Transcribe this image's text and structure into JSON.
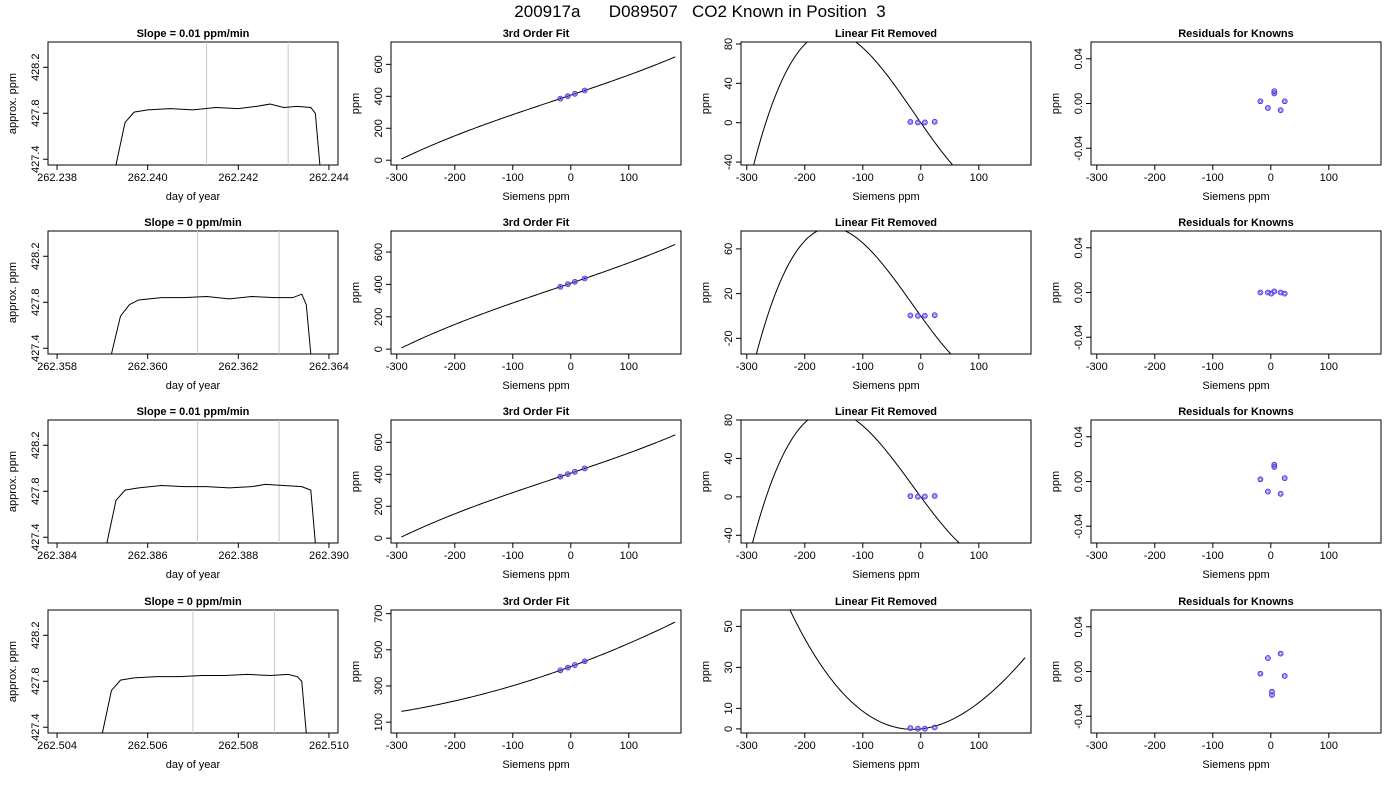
{
  "title": "200917a      D089507   CO2 Known in Position  3",
  "colors": {
    "ring_outer": "#7a1fd6",
    "ring_inner": "#1e90ff",
    "curve": "#000000",
    "vline": "#c8c8c8"
  },
  "chart_data": [
    {
      "row": 0,
      "col": 0,
      "type": "line",
      "title": "Slope =  0.01  ppm/min",
      "xlabel": "day of year",
      "ylabel": "approx. ppm",
      "xlim": [
        262.2378,
        262.2442
      ],
      "ylim": [
        427.35,
        428.42
      ],
      "xticks": [
        262.238,
        262.24,
        262.242,
        262.244
      ],
      "xtick_labels": [
        "262.238",
        "262.240",
        "262.242",
        "262.244"
      ],
      "yticks": [
        427.4,
        427.8,
        428.2
      ],
      "ytick_labels": [
        "427.4",
        "427.8",
        "428.2"
      ],
      "vlines": [
        262.2413,
        262.2431
      ],
      "series": [
        {
          "x": [
            262.2393,
            262.2395,
            262.2397,
            262.24,
            262.2405,
            262.241,
            262.2415,
            262.242,
            262.2424,
            262.2427,
            262.243,
            262.2433,
            262.2436,
            262.2437,
            262.2438
          ],
          "y": [
            427.35,
            427.72,
            427.81,
            427.83,
            427.84,
            427.83,
            427.85,
            427.84,
            427.86,
            427.88,
            427.85,
            427.86,
            427.85,
            427.8,
            427.35
          ]
        }
      ]
    },
    {
      "row": 0,
      "col": 1,
      "type": "line",
      "title": "3rd Order Fit",
      "xlabel": "Siemens ppm",
      "ylabel": "ppm",
      "xlim": [
        -310,
        190
      ],
      "ylim": [
        -30,
        740
      ],
      "xticks": [
        -300,
        -200,
        -100,
        0,
        100
      ],
      "xtick_labels": [
        "-300",
        "-200",
        "-100",
        "0",
        "100"
      ],
      "yticks": [
        0,
        200,
        400,
        600
      ],
      "ytick_labels": [
        "0",
        "200",
        "400",
        "600"
      ],
      "fit": "cubic",
      "coeffs": [
        407.3,
        1.214,
        0.0002,
        2.5e-06
      ],
      "fit_range": [
        -292,
        180
      ],
      "knowns": {
        "x": [
          -18,
          -5,
          7,
          24
        ],
        "y": [
          385.4,
          401.3,
          415.8,
          436.5
        ]
      }
    },
    {
      "row": 0,
      "col": 2,
      "type": "line",
      "title": "Linear Fit Removed",
      "xlabel": "Siemens ppm",
      "ylabel": "ppm",
      "xlim": [
        -310,
        190
      ],
      "ylim": [
        -43,
        82
      ],
      "xticks": [
        -300,
        -200,
        -100,
        0,
        100
      ],
      "xtick_labels": [
        "-300",
        "-200",
        "-100",
        "0",
        "100"
      ],
      "yticks": [
        -40,
        0,
        40,
        80
      ],
      "ytick_labels": [
        "-40",
        "0",
        "40",
        "80"
      ],
      "fit": "cubic",
      "coeffs": [
        0,
        -0.85,
        0.00048,
        1.37e-05
      ],
      "fit_range": [
        -292,
        180
      ],
      "knowns": {
        "x": [
          -18,
          -5,
          7,
          24
        ],
        "y": [
          0.8,
          0.2,
          0.3,
          0.9
        ]
      }
    },
    {
      "row": 0,
      "col": 3,
      "type": "scatter",
      "title": "Residuals for Knowns",
      "xlabel": "Siemens ppm",
      "ylabel": "ppm",
      "xlim": [
        -310,
        190
      ],
      "ylim": [
        -0.055,
        0.055
      ],
      "xticks": [
        -300,
        -200,
        -100,
        0,
        100
      ],
      "xtick_labels": [
        "-300",
        "-200",
        "-100",
        "0",
        "100"
      ],
      "yticks": [
        -0.04,
        0.0,
        0.04
      ],
      "ytick_labels": [
        "-0.04",
        "0.00",
        "0.04"
      ],
      "points": {
        "x": [
          -18,
          -5,
          6,
          17,
          24,
          6
        ],
        "y": [
          0.002,
          -0.004,
          0.009,
          -0.006,
          0.002,
          0.011
        ]
      }
    },
    {
      "row": 1,
      "col": 0,
      "type": "line",
      "title": "Slope =  0  ppm/min",
      "xlabel": "day of year",
      "ylabel": "approx. ppm",
      "xlim": [
        262.3578,
        262.3642
      ],
      "ylim": [
        427.35,
        428.42
      ],
      "xticks": [
        262.358,
        262.36,
        262.362,
        262.364
      ],
      "xtick_labels": [
        "262.358",
        "262.360",
        "262.362",
        "262.364"
      ],
      "vlines": [
        262.3611,
        262.3629
      ],
      "yticks": [
        427.4,
        427.8,
        428.2
      ],
      "ytick_labels": [
        "427.4",
        "427.8",
        "428.2"
      ],
      "series": [
        {
          "x": [
            262.3592,
            262.3594,
            262.3596,
            262.3598,
            262.3603,
            262.3608,
            262.3613,
            262.3618,
            262.3623,
            262.3628,
            262.3632,
            262.3634,
            262.3635,
            262.3636
          ],
          "y": [
            427.35,
            427.68,
            427.78,
            427.82,
            427.84,
            427.84,
            427.85,
            427.83,
            427.85,
            427.84,
            427.84,
            427.87,
            427.78,
            427.35
          ]
        }
      ]
    },
    {
      "row": 1,
      "col": 1,
      "type": "line",
      "title": "3rd Order Fit",
      "xlabel": "Siemens ppm",
      "ylabel": "ppm",
      "xlim": [
        -310,
        190
      ],
      "ylim": [
        -30,
        730
      ],
      "xticks": [
        -300,
        -200,
        -100,
        0,
        100
      ],
      "xtick_labels": [
        "-300",
        "-200",
        "-100",
        "0",
        "100"
      ],
      "yticks": [
        0,
        200,
        400,
        600
      ],
      "ytick_labels": [
        "0",
        "200",
        "400",
        "600"
      ],
      "fit": "cubic",
      "coeffs": [
        407.3,
        1.214,
        0.0002,
        2.5e-06
      ],
      "fit_range": [
        -292,
        180
      ],
      "knowns": {
        "x": [
          -18,
          -5,
          7,
          24
        ],
        "y": [
          385.4,
          401.3,
          415.8,
          436.5
        ]
      }
    },
    {
      "row": 1,
      "col": 2,
      "type": "line",
      "title": "Linear Fit Removed",
      "xlabel": "Siemens ppm",
      "ylabel": "ppm",
      "xlim": [
        -310,
        190
      ],
      "ylim": [
        -34,
        76
      ],
      "xticks": [
        -300,
        -200,
        -100,
        0,
        100
      ],
      "xtick_labels": [
        "-300",
        "-200",
        "-100",
        "0",
        "100"
      ],
      "yticks": [
        -20,
        20,
        60
      ],
      "ytick_labels": [
        "-20",
        "20",
        "60"
      ],
      "fit": "cubic",
      "coeffs": [
        0,
        -0.72,
        0.00058,
        1.25e-05
      ],
      "fit_range": [
        -292,
        180
      ],
      "knowns": {
        "x": [
          -18,
          -5,
          7,
          24
        ],
        "y": [
          0.5,
          0.1,
          0.2,
          0.7
        ]
      }
    },
    {
      "row": 1,
      "col": 3,
      "type": "scatter",
      "title": "Residuals for Knowns",
      "xlabel": "Siemens ppm",
      "ylabel": "ppm",
      "xlim": [
        -310,
        190
      ],
      "ylim": [
        -0.055,
        0.055
      ],
      "xticks": [
        -300,
        -200,
        -100,
        0,
        100
      ],
      "xtick_labels": [
        "-300",
        "-200",
        "-100",
        "0",
        "100"
      ],
      "yticks": [
        -0.04,
        0.0,
        0.04
      ],
      "ytick_labels": [
        "-0.04",
        "0.00",
        "0.04"
      ],
      "points": {
        "x": [
          -18,
          -5,
          1,
          6,
          17,
          24
        ],
        "y": [
          0.0,
          0.0,
          -0.001,
          0.001,
          0.0,
          -0.001
        ]
      }
    },
    {
      "row": 2,
      "col": 0,
      "type": "line",
      "title": "Slope =  0.01  ppm/min",
      "xlabel": "day of year",
      "ylabel": "approx. ppm",
      "xlim": [
        262.3838,
        262.3902
      ],
      "ylim": [
        427.35,
        428.42
      ],
      "xticks": [
        262.384,
        262.386,
        262.388,
        262.39
      ],
      "xtick_labels": [
        "262.384",
        "262.386",
        "262.388",
        "262.390"
      ],
      "vlines": [
        262.3871,
        262.3889
      ],
      "yticks": [
        427.4,
        427.8,
        428.2
      ],
      "ytick_labels": [
        "427.4",
        "427.8",
        "428.2"
      ],
      "series": [
        {
          "x": [
            262.3851,
            262.3853,
            262.3855,
            262.3858,
            262.3863,
            262.3868,
            262.3873,
            262.3878,
            262.3883,
            262.3886,
            262.389,
            262.3894,
            262.3896,
            262.3897
          ],
          "y": [
            427.35,
            427.72,
            427.81,
            427.83,
            427.85,
            427.84,
            427.84,
            427.83,
            427.84,
            427.86,
            427.85,
            427.84,
            427.81,
            427.35
          ]
        }
      ]
    },
    {
      "row": 2,
      "col": 1,
      "type": "line",
      "title": "3rd Order Fit",
      "xlabel": "Siemens ppm",
      "ylabel": "ppm",
      "xlim": [
        -310,
        190
      ],
      "ylim": [
        -30,
        740
      ],
      "xticks": [
        -300,
        -200,
        -100,
        0,
        100
      ],
      "xtick_labels": [
        "-300",
        "-200",
        "-100",
        "0",
        "100"
      ],
      "yticks": [
        0,
        200,
        400,
        600
      ],
      "ytick_labels": [
        "0",
        "200",
        "400",
        "600"
      ],
      "fit": "cubic",
      "coeffs": [
        407.3,
        1.214,
        0.0002,
        2.5e-06
      ],
      "fit_range": [
        -292,
        180
      ],
      "knowns": {
        "x": [
          -18,
          -5,
          7,
          24
        ],
        "y": [
          385.4,
          401.3,
          415.8,
          436.5
        ]
      }
    },
    {
      "row": 2,
      "col": 2,
      "type": "line",
      "title": "Linear Fit Removed",
      "xlabel": "Siemens ppm",
      "ylabel": "ppm",
      "xlim": [
        -310,
        190
      ],
      "ylim": [
        -48,
        80
      ],
      "xticks": [
        -300,
        -200,
        -100,
        0,
        100
      ],
      "xtick_labels": [
        "-300",
        "-200",
        "-100",
        "0",
        "100"
      ],
      "yticks": [
        -40,
        0,
        40,
        80
      ],
      "ytick_labels": [
        "-40",
        "0",
        "40",
        "80"
      ],
      "fit": "cubic",
      "coeffs": [
        0,
        -0.82,
        0.00055,
        1.36e-05
      ],
      "fit_range": [
        -292,
        180
      ],
      "knowns": {
        "x": [
          -18,
          -5,
          7,
          24
        ],
        "y": [
          0.8,
          0.2,
          0.3,
          0.9
        ]
      }
    },
    {
      "row": 2,
      "col": 3,
      "type": "scatter",
      "title": "Residuals for Knowns",
      "xlabel": "Siemens ppm",
      "ylabel": "ppm",
      "xlim": [
        -310,
        190
      ],
      "ylim": [
        -0.055,
        0.055
      ],
      "xticks": [
        -300,
        -200,
        -100,
        0,
        100
      ],
      "xtick_labels": [
        "-300",
        "-200",
        "-100",
        "0",
        "100"
      ],
      "yticks": [
        -0.04,
        0.0,
        0.04
      ],
      "ytick_labels": [
        "-0.04",
        "0.00",
        "0.04"
      ],
      "points": {
        "x": [
          -18,
          -5,
          6,
          17,
          24,
          6
        ],
        "y": [
          0.002,
          -0.009,
          0.015,
          -0.011,
          0.003,
          0.013
        ]
      }
    },
    {
      "row": 3,
      "col": 0,
      "type": "line",
      "title": "Slope =  0  ppm/min",
      "xlabel": "day of year",
      "ylabel": "approx. ppm",
      "xlim": [
        262.5038,
        262.5102
      ],
      "ylim": [
        427.35,
        428.42
      ],
      "xticks": [
        262.504,
        262.506,
        262.508,
        262.51
      ],
      "xtick_labels": [
        "262.504",
        "262.506",
        "262.508",
        "262.510"
      ],
      "vlines": [
        262.507,
        262.5088
      ],
      "yticks": [
        427.4,
        427.8,
        428.2
      ],
      "ytick_labels": [
        "427.4",
        "427.8",
        "428.2"
      ],
      "series": [
        {
          "x": [
            262.505,
            262.5052,
            262.5054,
            262.5057,
            262.5062,
            262.5067,
            262.5072,
            262.5077,
            262.5082,
            262.5087,
            262.5091,
            262.5093,
            262.5094,
            262.5095
          ],
          "y": [
            427.35,
            427.72,
            427.81,
            427.83,
            427.84,
            427.84,
            427.85,
            427.85,
            427.86,
            427.85,
            427.86,
            427.84,
            427.8,
            427.35
          ]
        }
      ]
    },
    {
      "row": 3,
      "col": 1,
      "type": "line",
      "title": "3rd Order Fit",
      "xlabel": "Siemens ppm",
      "ylabel": "ppm",
      "xlim": [
        -310,
        190
      ],
      "ylim": [
        40,
        720
      ],
      "xticks": [
        -300,
        -200,
        -100,
        0,
        100
      ],
      "xtick_labels": [
        "-300",
        "-200",
        "-100",
        "0",
        "100"
      ],
      "yticks": [
        100,
        300,
        500,
        700
      ],
      "ytick_labels": [
        "100",
        "300",
        "500",
        "700"
      ],
      "fit": "cubic",
      "coeffs": [
        407.3,
        1.17,
        0.0011,
        0.0
      ],
      "fit_range": [
        -292,
        180
      ],
      "knowns": {
        "x": [
          -18,
          -5,
          7,
          24
        ],
        "y": [
          386.6,
          401.4,
          415.6,
          436.7
        ]
      }
    },
    {
      "row": 3,
      "col": 2,
      "type": "line",
      "title": "Linear Fit Removed",
      "xlabel": "Siemens ppm",
      "ylabel": "ppm",
      "xlim": [
        -310,
        190
      ],
      "ylim": [
        -2,
        58
      ],
      "xticks": [
        -300,
        -200,
        -100,
        0,
        100
      ],
      "xtick_labels": [
        "-300",
        "-200",
        "-100",
        "0",
        "100"
      ],
      "yticks": [
        0,
        10,
        30,
        50
      ],
      "ytick_labels": [
        "0",
        "10",
        "30",
        "50"
      ],
      "fit": "cubic",
      "coeffs": [
        0,
        0.03,
        0.00107,
        -9e-07
      ],
      "fit_range": [
        -292,
        180
      ],
      "knowns": {
        "x": [
          -18,
          -5,
          7,
          24
        ],
        "y": [
          0.4,
          0.1,
          0.1,
          0.7
        ]
      }
    },
    {
      "row": 3,
      "col": 3,
      "type": "scatter",
      "title": "Residuals for Knowns",
      "xlabel": "Siemens ppm",
      "ylabel": "ppm",
      "xlim": [
        -310,
        190
      ],
      "ylim": [
        -0.055,
        0.055
      ],
      "xticks": [
        -300,
        -200,
        -100,
        0,
        100
      ],
      "xtick_labels": [
        "-300",
        "-200",
        "-100",
        "0",
        "100"
      ],
      "yticks": [
        -0.04,
        0.0,
        0.04
      ],
      "ytick_labels": [
        "-0.04",
        "0.00",
        "0.04"
      ],
      "points": {
        "x": [
          -18,
          -5,
          2,
          17,
          24,
          2
        ],
        "y": [
          -0.002,
          0.012,
          -0.021,
          0.016,
          -0.004,
          -0.018
        ]
      }
    }
  ]
}
